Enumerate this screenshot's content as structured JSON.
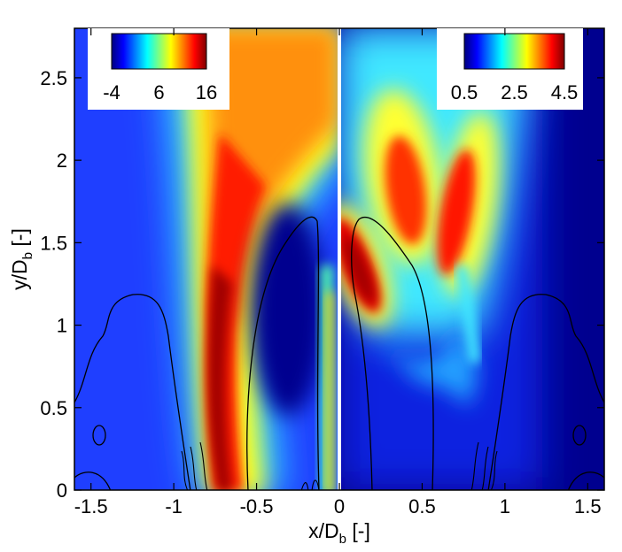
{
  "chart_data": {
    "type": "heatmap",
    "xlabel": {
      "main": "x/D",
      "sub": "b",
      "unit": " [-]"
    },
    "ylabel": {
      "main": "y/D",
      "sub": "b",
      "unit": " [-]"
    },
    "xlim": [
      -1.6,
      1.6
    ],
    "ylim": [
      0,
      2.8
    ],
    "xticks": [
      -1.5,
      -1,
      -0.5,
      0,
      0.5,
      1,
      1.5
    ],
    "xtick_labels": [
      "-1.5",
      "-1",
      "-0.5",
      "0",
      "0.5",
      "1",
      "1.5"
    ],
    "yticks": [
      0,
      0.5,
      1,
      1.5,
      2,
      2.5
    ],
    "ytick_labels": [
      "0",
      "0.5",
      "1",
      "1.5",
      "2",
      "2.5"
    ],
    "colormap": "jet",
    "panels": [
      {
        "side": "left",
        "colorbar": {
          "min": -4,
          "max": 16,
          "tick_labels": [
            "-4",
            "6",
            "16"
          ],
          "tick_values": [
            -4,
            6,
            16
          ],
          "placement": "top-left"
        }
      },
      {
        "side": "right",
        "colorbar": {
          "min": 0.5,
          "max": 4.5,
          "tick_labels": [
            "0.5",
            "2.5",
            "4.5"
          ],
          "tick_values": [
            0.5,
            2.5,
            4.5
          ],
          "placement": "top-right"
        }
      }
    ],
    "divider_x": 0,
    "contour_color": "#000000",
    "divider_color": "#ffffff"
  }
}
